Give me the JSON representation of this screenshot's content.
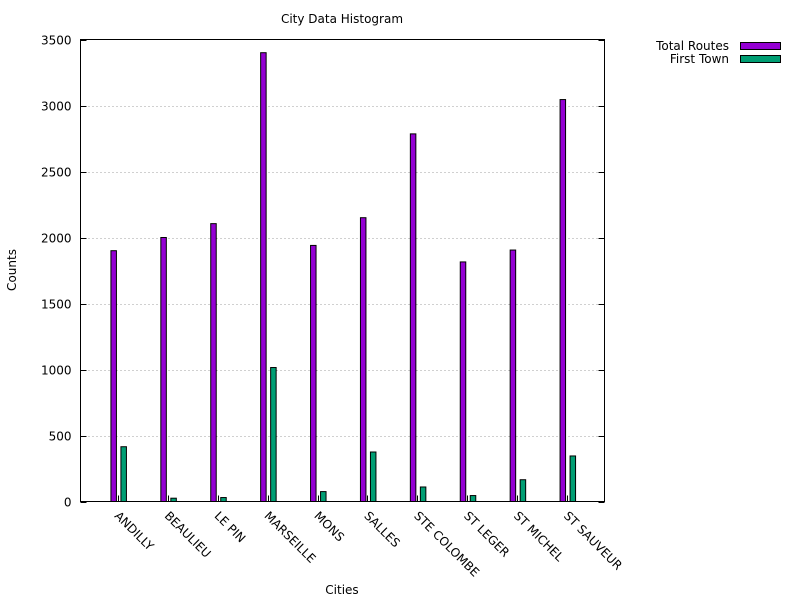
{
  "chart_data": {
    "type": "bar",
    "title": "City Data Histogram",
    "xlabel": "Cities",
    "ylabel": "Counts",
    "ylim": [
      0,
      3500
    ],
    "yticks": [
      0,
      500,
      1000,
      1500,
      2000,
      2500,
      3000,
      3500
    ],
    "grid": true,
    "legend_position": "top-right outside",
    "categories": [
      "ANDILLY",
      "BEAULIEU",
      "LE PIN",
      "MARSEILLE",
      "MONS",
      "SALLES",
      "STE COLOMBE",
      "ST LEGER",
      "ST MICHEL",
      "ST SAUVEUR"
    ],
    "series": [
      {
        "name": "Total Routes",
        "color": "#9400d3",
        "values": [
          1900,
          2000,
          2105,
          3400,
          1940,
          2150,
          2785,
          1815,
          1905,
          3045
        ]
      },
      {
        "name": "First Town",
        "color": "#009e73",
        "values": [
          415,
          25,
          30,
          1015,
          75,
          375,
          110,
          45,
          165,
          345
        ]
      }
    ]
  }
}
